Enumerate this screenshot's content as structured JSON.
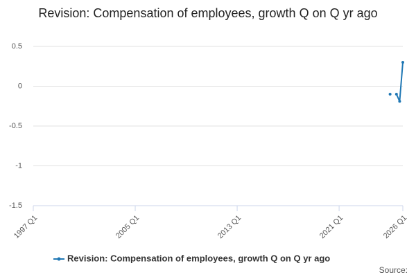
{
  "chart_data": {
    "type": "line",
    "title": "Revision: Compensation of employees, growth Q on Q yr ago",
    "source": "Source:",
    "categories": [
      "1997 Q1",
      null,
      null,
      null,
      null,
      null,
      null,
      null,
      null,
      null,
      null,
      null,
      null,
      null,
      null,
      null,
      null,
      null,
      null,
      null,
      null,
      null,
      null,
      null,
      null,
      null,
      null,
      null,
      null,
      null,
      null,
      null,
      "2005 Q1",
      null,
      null,
      null,
      null,
      null,
      null,
      null,
      null,
      null,
      null,
      null,
      null,
      null,
      null,
      null,
      null,
      null,
      null,
      null,
      null,
      null,
      null,
      null,
      null,
      null,
      null,
      null,
      null,
      null,
      null,
      null,
      "2013 Q1",
      null,
      null,
      null,
      null,
      null,
      null,
      null,
      null,
      null,
      null,
      null,
      null,
      null,
      null,
      null,
      null,
      null,
      null,
      null,
      null,
      null,
      null,
      null,
      null,
      null,
      null,
      null,
      null,
      null,
      null,
      null,
      "2021 Q1",
      null,
      null,
      null,
      null,
      null,
      null,
      null,
      null,
      null,
      null,
      null,
      null,
      null,
      null,
      null,
      null,
      null,
      null,
      null,
      "2026 Q1"
    ],
    "series": [
      {
        "name": "Revision: Compensation of employees, growth Q on Q yr ago",
        "color": "#1f77b4",
        "values": [
          null,
          null,
          null,
          null,
          null,
          null,
          null,
          null,
          null,
          null,
          null,
          null,
          null,
          null,
          null,
          null,
          null,
          null,
          null,
          null,
          null,
          null,
          null,
          null,
          null,
          null,
          null,
          null,
          null,
          null,
          null,
          null,
          null,
          null,
          null,
          null,
          null,
          null,
          null,
          null,
          null,
          null,
          null,
          null,
          null,
          null,
          null,
          null,
          null,
          null,
          null,
          null,
          null,
          null,
          null,
          null,
          null,
          null,
          null,
          null,
          null,
          null,
          null,
          null,
          null,
          null,
          null,
          null,
          null,
          null,
          null,
          null,
          null,
          null,
          null,
          null,
          null,
          null,
          null,
          null,
          null,
          null,
          null,
          null,
          null,
          null,
          null,
          null,
          null,
          null,
          null,
          null,
          null,
          null,
          null,
          null,
          null,
          null,
          null,
          null,
          null,
          null,
          null,
          null,
          null,
          null,
          null,
          null,
          null,
          null,
          null,
          null,
          -0.1,
          null,
          -0.1,
          -0.19,
          0.3
        ]
      }
    ],
    "ylim": [
      -1.5,
      0.5
    ],
    "yticks": [
      -1.5,
      -1,
      -0.5,
      0,
      0.5
    ],
    "grid": true
  }
}
